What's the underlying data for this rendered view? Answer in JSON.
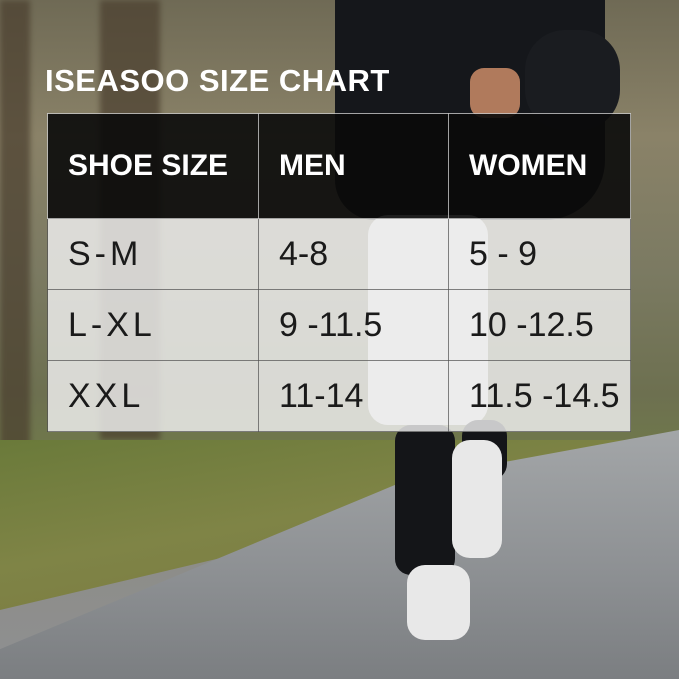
{
  "title": "ISEASOO SIZE CHART",
  "table": {
    "headers": [
      "SHOE SIZE",
      "MEN",
      "WOMEN"
    ],
    "rows": [
      [
        "S-M",
        "4-8",
        "5 - 9"
      ],
      [
        "L-XL",
        "9 -11.5",
        "10 -12.5"
      ],
      [
        "XXL",
        "11-14",
        "11.5 -14.5"
      ]
    ]
  }
}
